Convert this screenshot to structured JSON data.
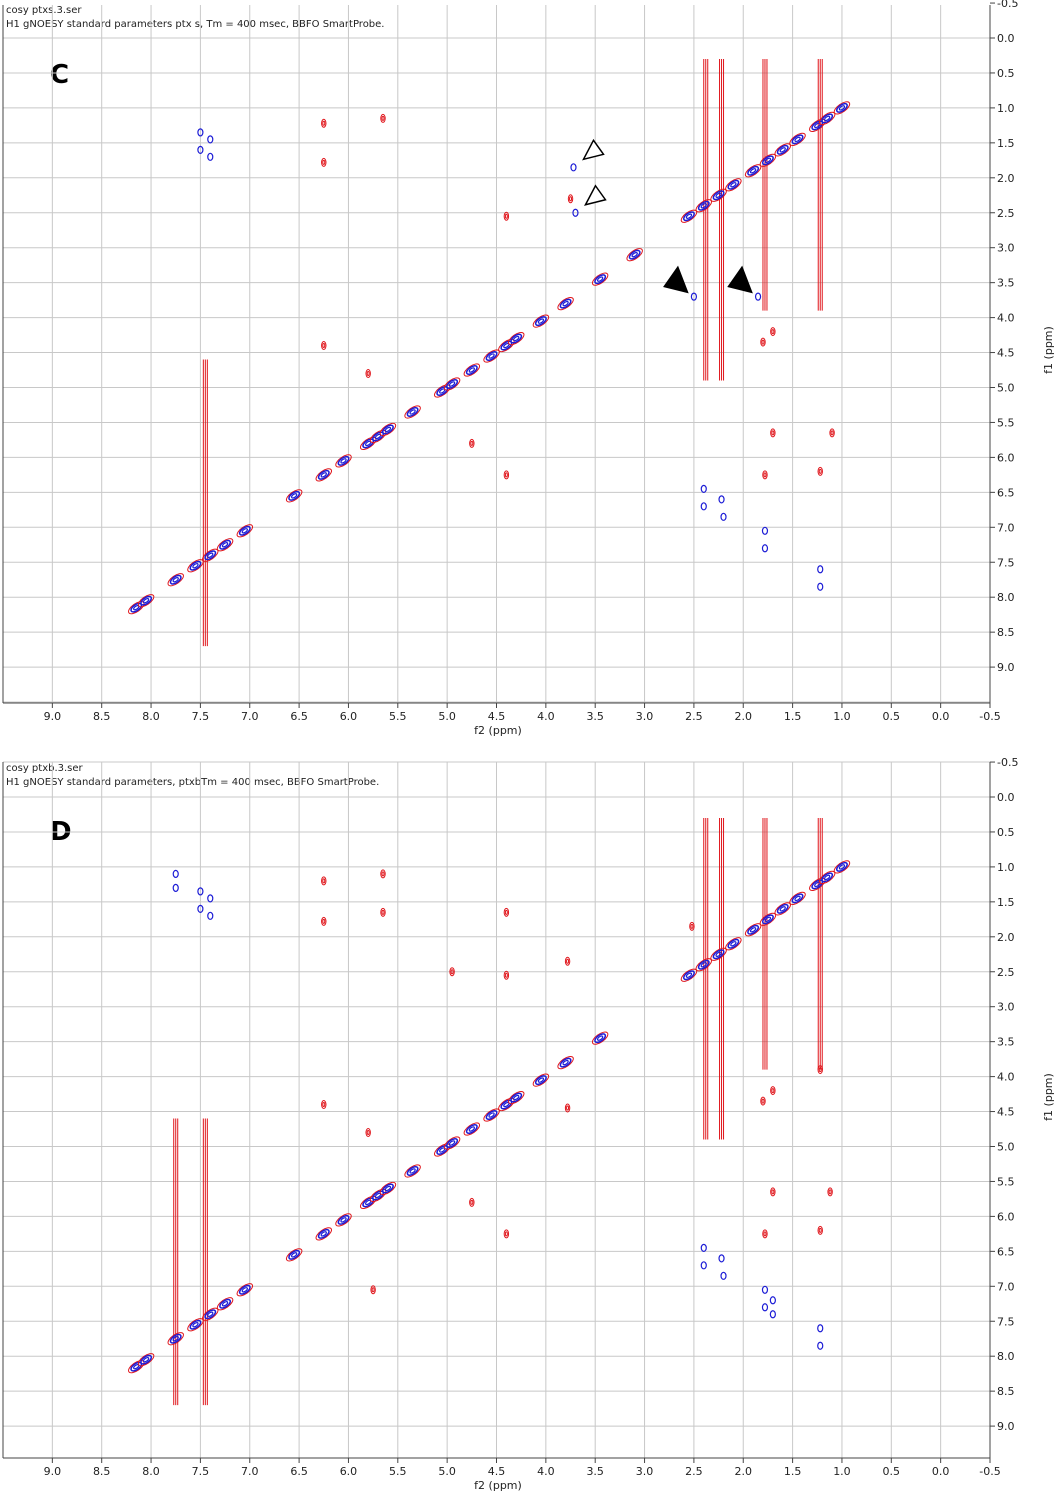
{
  "colors": {
    "positive": "#e0151b",
    "negative": "#1d1dd6",
    "grid": "#c8c8c8",
    "axis": "#444444"
  },
  "panels": [
    {
      "letter": "C",
      "file": "cosy ptxs.3.ser",
      "description": "H1 gNOESY standard parameters ptx s, Tm = 400 msec, BBFO SmartProbe.",
      "xlabel": "f2 (ppm)",
      "ylabel": "f1 (ppm)",
      "x_ticks": [
        "9.0",
        "8.5",
        "8.0",
        "7.5",
        "7.0",
        "6.5",
        "6.0",
        "5.5",
        "5.0",
        "4.5",
        "4.0",
        "3.5",
        "3.0",
        "2.5",
        "2.0",
        "1.5",
        "1.0",
        "0.5",
        "0.0",
        "-0.5"
      ],
      "y_ticks": [
        "-0.5",
        "0.0",
        "0.5",
        "1.0",
        "1.5",
        "2.0",
        "2.5",
        "3.0",
        "3.5",
        "4.0",
        "4.5",
        "5.0",
        "5.5",
        "6.0",
        "6.5",
        "7.0",
        "7.5",
        "8.0",
        "8.5",
        "9.0"
      ]
    },
    {
      "letter": "D",
      "file": "cosy ptxb.3.ser",
      "description": "H1 gNOESY standard parameters, ptxbTm = 400 msec, BBFO SmartProbe.",
      "xlabel": "f2 (ppm)",
      "ylabel": "f1 (ppm)",
      "x_ticks": [
        "9.0",
        "8.5",
        "8.0",
        "7.5",
        "7.0",
        "6.5",
        "6.0",
        "5.5",
        "5.0",
        "4.5",
        "4.0",
        "3.5",
        "3.0",
        "2.5",
        "2.0",
        "1.5",
        "1.0",
        "0.5",
        "0.0",
        "-0.5"
      ],
      "y_ticks": [
        "-0.5",
        "0.0",
        "0.5",
        "1.0",
        "1.5",
        "2.0",
        "2.5",
        "3.0",
        "3.5",
        "4.0",
        "4.5",
        "5.0",
        "5.5",
        "6.0",
        "6.5",
        "7.0",
        "7.5",
        "8.0",
        "8.5",
        "9.0"
      ]
    }
  ],
  "chart_data": [
    {
      "type": "scatter",
      "title": "",
      "xlabel": "f2 (ppm)",
      "ylabel": "f1 (ppm)",
      "xlim": [
        9.5,
        -0.5
      ],
      "ylim": [
        -0.5,
        9.5
      ],
      "grid": true,
      "diagonal": [
        [
          8.15,
          8.15
        ],
        [
          8.05,
          8.05
        ],
        [
          7.75,
          7.75
        ],
        [
          7.55,
          7.55
        ],
        [
          7.4,
          7.4
        ],
        [
          7.25,
          7.25
        ],
        [
          7.05,
          7.05
        ],
        [
          6.55,
          6.55
        ],
        [
          6.25,
          6.25
        ],
        [
          6.05,
          6.05
        ],
        [
          5.8,
          5.8
        ],
        [
          5.7,
          5.7
        ],
        [
          5.6,
          5.6
        ],
        [
          5.35,
          5.35
        ],
        [
          5.05,
          5.05
        ],
        [
          4.95,
          4.95
        ],
        [
          4.75,
          4.75
        ],
        [
          4.55,
          4.55
        ],
        [
          4.4,
          4.4
        ],
        [
          4.3,
          4.3
        ],
        [
          4.05,
          4.05
        ],
        [
          3.8,
          3.8
        ],
        [
          3.45,
          3.45
        ],
        [
          3.1,
          3.1
        ],
        [
          2.55,
          2.55
        ],
        [
          2.4,
          2.4
        ],
        [
          2.25,
          2.25
        ],
        [
          2.1,
          2.1
        ],
        [
          1.9,
          1.9
        ],
        [
          1.75,
          1.75
        ],
        [
          1.6,
          1.6
        ],
        [
          1.45,
          1.45
        ],
        [
          1.25,
          1.25
        ],
        [
          1.15,
          1.15
        ],
        [
          1.0,
          1.0
        ]
      ],
      "positive_peaks": [
        [
          6.25,
          1.22
        ],
        [
          6.25,
          1.78
        ],
        [
          5.65,
          1.15
        ],
        [
          6.25,
          4.4
        ],
        [
          5.8,
          4.8
        ],
        [
          4.75,
          5.8
        ],
        [
          4.4,
          2.55
        ],
        [
          3.75,
          2.3
        ],
        [
          4.4,
          6.25
        ],
        [
          1.78,
          6.25
        ],
        [
          1.22,
          6.2
        ],
        [
          1.1,
          5.65
        ],
        [
          1.7,
          5.65
        ],
        [
          1.7,
          4.2
        ],
        [
          1.8,
          4.35
        ]
      ],
      "negative_peaks": [
        [
          7.5,
          1.35
        ],
        [
          7.4,
          1.45
        ],
        [
          7.5,
          1.6
        ],
        [
          7.4,
          1.7
        ],
        [
          3.72,
          1.85
        ],
        [
          3.7,
          2.5
        ],
        [
          2.5,
          3.7
        ],
        [
          1.85,
          3.7
        ],
        [
          2.4,
          6.45
        ],
        [
          2.4,
          6.7
        ],
        [
          2.22,
          6.6
        ],
        [
          2.2,
          6.85
        ],
        [
          1.78,
          7.05
        ],
        [
          1.78,
          7.3
        ],
        [
          1.22,
          7.6
        ],
        [
          1.22,
          7.85
        ]
      ],
      "vertical_streaks_f2": [
        2.38,
        2.22,
        1.78,
        1.22,
        7.45
      ],
      "annotations": [
        "open-arrow 3.72/1.85",
        "open-arrow 3.70/2.50",
        "filled-arrow 2.50/3.70",
        "filled-arrow 1.85/3.70"
      ]
    },
    {
      "type": "scatter",
      "title": "",
      "xlabel": "f2 (ppm)",
      "ylabel": "f1 (ppm)",
      "xlim": [
        9.5,
        -0.5
      ],
      "ylim": [
        -0.5,
        9.5
      ],
      "grid": true,
      "diagonal": [
        [
          8.15,
          8.15
        ],
        [
          8.05,
          8.05
        ],
        [
          7.75,
          7.75
        ],
        [
          7.55,
          7.55
        ],
        [
          7.4,
          7.4
        ],
        [
          7.25,
          7.25
        ],
        [
          7.05,
          7.05
        ],
        [
          6.55,
          6.55
        ],
        [
          6.25,
          6.25
        ],
        [
          6.05,
          6.05
        ],
        [
          5.8,
          5.8
        ],
        [
          5.7,
          5.7
        ],
        [
          5.6,
          5.6
        ],
        [
          5.35,
          5.35
        ],
        [
          5.05,
          5.05
        ],
        [
          4.95,
          4.95
        ],
        [
          4.75,
          4.75
        ],
        [
          4.55,
          4.55
        ],
        [
          4.4,
          4.4
        ],
        [
          4.3,
          4.3
        ],
        [
          4.05,
          4.05
        ],
        [
          3.8,
          3.8
        ],
        [
          3.45,
          3.45
        ],
        [
          2.55,
          2.55
        ],
        [
          2.4,
          2.4
        ],
        [
          2.25,
          2.25
        ],
        [
          2.1,
          2.1
        ],
        [
          1.9,
          1.9
        ],
        [
          1.75,
          1.75
        ],
        [
          1.6,
          1.6
        ],
        [
          1.45,
          1.45
        ],
        [
          1.25,
          1.25
        ],
        [
          1.15,
          1.15
        ],
        [
          1.0,
          1.0
        ]
      ],
      "positive_peaks": [
        [
          6.25,
          1.2
        ],
        [
          6.25,
          1.78
        ],
        [
          5.65,
          1.1
        ],
        [
          5.65,
          1.65
        ],
        [
          4.4,
          1.65
        ],
        [
          4.95,
          2.5
        ],
        [
          4.4,
          2.55
        ],
        [
          3.78,
          2.35
        ],
        [
          2.52,
          1.85
        ],
        [
          6.25,
          4.4
        ],
        [
          5.8,
          4.8
        ],
        [
          3.78,
          4.45
        ],
        [
          4.75,
          5.8
        ],
        [
          4.4,
          6.25
        ],
        [
          5.75,
          7.05
        ],
        [
          1.78,
          6.25
        ],
        [
          1.22,
          6.2
        ],
        [
          1.12,
          5.65
        ],
        [
          1.7,
          5.65
        ],
        [
          1.7,
          4.2
        ],
        [
          1.8,
          4.35
        ],
        [
          1.22,
          3.9
        ]
      ],
      "negative_peaks": [
        [
          7.75,
          1.1
        ],
        [
          7.75,
          1.3
        ],
        [
          7.5,
          1.35
        ],
        [
          7.4,
          1.45
        ],
        [
          7.5,
          1.6
        ],
        [
          7.4,
          1.7
        ],
        [
          2.4,
          6.45
        ],
        [
          2.4,
          6.7
        ],
        [
          2.22,
          6.6
        ],
        [
          2.2,
          6.85
        ],
        [
          1.78,
          7.05
        ],
        [
          1.78,
          7.3
        ],
        [
          1.7,
          7.2
        ],
        [
          1.7,
          7.4
        ],
        [
          1.22,
          7.6
        ],
        [
          1.22,
          7.85
        ],
        [
          8.1,
          9.5
        ]
      ],
      "vertical_streaks_f2": [
        2.38,
        2.22,
        1.78,
        1.22,
        7.45,
        7.75
      ],
      "annotations": []
    }
  ]
}
